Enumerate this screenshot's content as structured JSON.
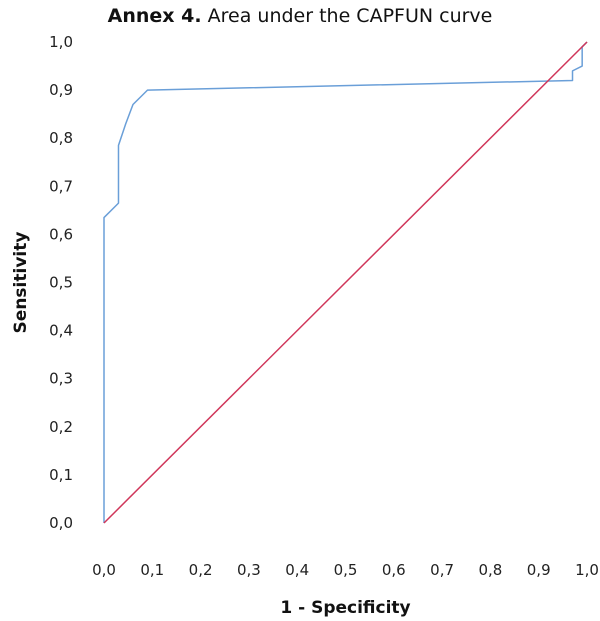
{
  "chart_data": {
    "type": "line",
    "title_bold": "Annex 4.",
    "title": "Area under the CAPFUN curve",
    "xlabel": "1 - Specificity",
    "ylabel": "Sensitivity",
    "xlim": [
      0,
      1
    ],
    "ylim": [
      0,
      1
    ],
    "x_ticks": [
      "0,0",
      "0,1",
      "0,2",
      "0,3",
      "0,4",
      "0,5",
      "0,6",
      "0,7",
      "0,8",
      "0,9",
      "1,0"
    ],
    "y_ticks": [
      "0,0",
      "0,1",
      "0,2",
      "0,3",
      "0,4",
      "0,5",
      "0,6",
      "0,7",
      "0,8",
      "0,9",
      "1,0"
    ],
    "grid": false,
    "legend": "none",
    "series": [
      {
        "color": "#6a9fd8",
        "x": [
          0.0,
          0.0,
          0.03,
          0.03,
          0.045,
          0.06,
          0.09,
          0.97,
          0.97,
          0.99,
          0.99,
          1.0
        ],
        "y": [
          0.0,
          0.635,
          0.665,
          0.785,
          0.83,
          0.87,
          0.9,
          0.92,
          0.94,
          0.95,
          0.99,
          1.0
        ]
      },
      {
        "color": "#d0365a",
        "x": [
          0.0,
          1.0
        ],
        "y": [
          0.0,
          1.0
        ]
      }
    ]
  }
}
